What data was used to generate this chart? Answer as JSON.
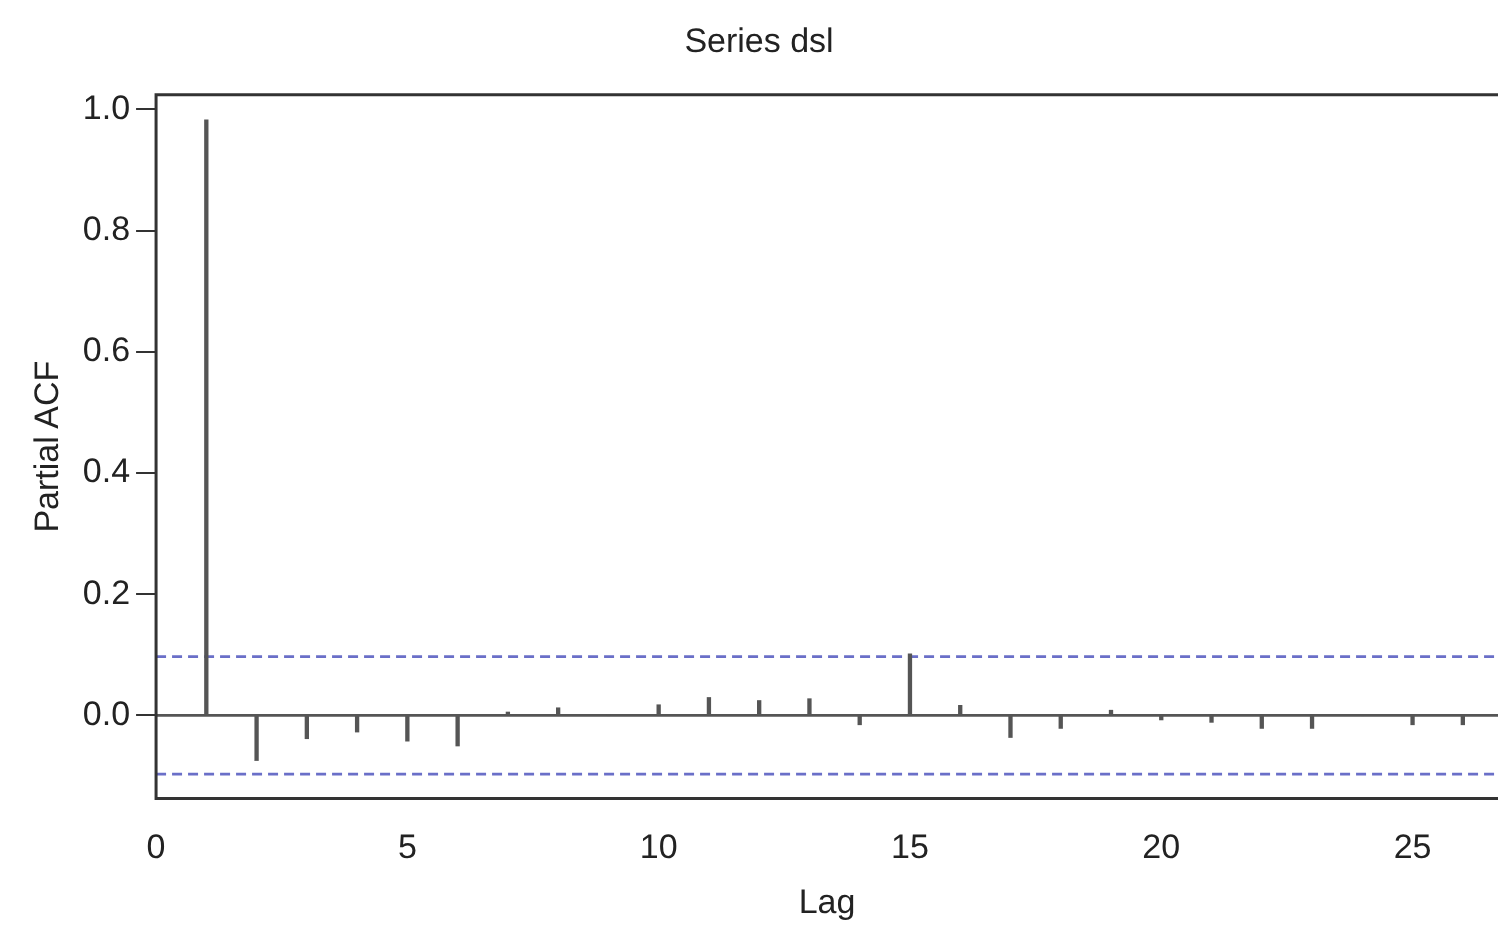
{
  "chart_data": {
    "type": "bar",
    "title": "Series dsl",
    "xlabel": "Lag",
    "ylabel": "Partial ACF",
    "x": [
      1,
      2,
      3,
      4,
      5,
      6,
      7,
      8,
      9,
      10,
      11,
      12,
      13,
      14,
      15,
      16,
      17,
      18,
      19,
      20,
      21,
      22,
      23,
      24,
      25,
      26
    ],
    "series": [
      {
        "color": "#555555",
        "values": [
          0.982,
          -0.074,
          -0.038,
          -0.027,
          -0.042,
          -0.05,
          0.005,
          0.012,
          0,
          0.017,
          0.029,
          0.024,
          0.027,
          -0.015,
          0.101,
          0.016,
          -0.036,
          -0.021,
          0.008,
          -0.007,
          -0.011,
          -0.021,
          -0.021,
          0,
          -0.015,
          -0.015
        ]
      }
    ],
    "xlim": [
      0,
      26.7
    ],
    "xticks": [
      0,
      5,
      10,
      15,
      20,
      25
    ],
    "ylim": [
      -0.137,
      1.024
    ],
    "yticks": [
      {
        "value": 0,
        "label": "0.0"
      },
      {
        "value": 0.2,
        "label": "0.2"
      },
      {
        "value": 0.4,
        "label": "0.4"
      },
      {
        "value": 0.6,
        "label": "0.6"
      },
      {
        "value": 0.8,
        "label": "0.8"
      },
      {
        "value": 1,
        "label": "1.0"
      }
    ],
    "ref_lines": [
      {
        "axis": "y",
        "value": 0,
        "color": "#555555",
        "line_style": "solid"
      },
      {
        "axis": "y",
        "value": 0.097,
        "color": "#6a6fc8",
        "line_style": "dashed"
      },
      {
        "axis": "y",
        "value": -0.097,
        "color": "#6a6fc8",
        "line_style": "dashed"
      }
    ],
    "grid": false,
    "legend": false
  }
}
